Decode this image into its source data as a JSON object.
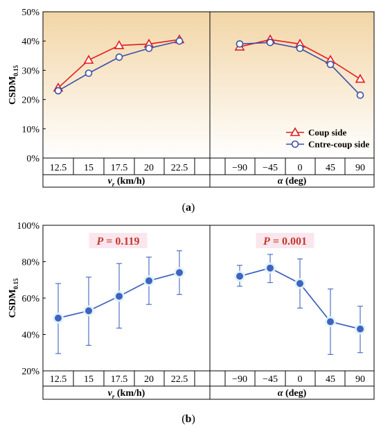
{
  "colors": {
    "coup": "#e31a1c",
    "contre": "#3a4fa8",
    "mean": "#3f63c0",
    "p_text": "#c0392b",
    "p_bg": "#fbe6ee",
    "bg_top": "#f2d5a6",
    "bg_bottom": "#ffffff"
  },
  "chart_data": [
    {
      "type": "line",
      "panel_label": "(a)",
      "ylabel": "CSDM",
      "ylabel_sub": "0.15",
      "ylim": [
        0,
        50
      ],
      "yticks": [
        "0%",
        "10%",
        "20%",
        "30%",
        "40%",
        "50%"
      ],
      "gradient_background": true,
      "legend_position": "bottom-right",
      "groups": [
        {
          "axis_label": "v",
          "axis_label_sub": "r",
          "axis_label_rest": " (km/h)",
          "categories": [
            "12.5",
            "15",
            "17.5",
            "20",
            "22.5"
          ]
        },
        {
          "axis_label": "α",
          "axis_label_sub": "",
          "axis_label_rest": " (deg)",
          "categories": [
            "−90",
            "−45",
            "0",
            "45",
            "90"
          ]
        }
      ],
      "series": [
        {
          "name": "Coup side",
          "marker": "triangle",
          "color_key": "coup",
          "values": [
            [
              24.0,
              33.5,
              38.5,
              39.0,
              40.5
            ],
            [
              38.0,
              40.5,
              39.0,
              33.5,
              27.0
            ]
          ]
        },
        {
          "name": "Cntre-coup side",
          "marker": "circle",
          "color_key": "contre",
          "values": [
            [
              23.0,
              29.0,
              34.5,
              37.5,
              40.0
            ],
            [
              39.0,
              39.5,
              37.5,
              32.0,
              21.5
            ]
          ]
        }
      ]
    },
    {
      "type": "line",
      "panel_label": "(b)",
      "ylabel": "CSDM",
      "ylabel_sub": "0.15",
      "ylim": [
        20,
        100
      ],
      "yticks": [
        "20%",
        "40%",
        "60%",
        "80%",
        "100%"
      ],
      "gradient_background": false,
      "groups": [
        {
          "axis_label": "v",
          "axis_label_sub": "r",
          "axis_label_rest": " (km/h)",
          "categories": [
            "12.5",
            "15",
            "17.5",
            "20",
            "22.5"
          ],
          "p_value": "P = 0.119",
          "values": [
            49,
            53,
            61,
            69.5,
            74
          ],
          "err_low": [
            29.5,
            34,
            43.5,
            56.5,
            62
          ],
          "err_high": [
            68,
            71.5,
            79,
            82.5,
            86
          ]
        },
        {
          "axis_label": "α",
          "axis_label_sub": "",
          "axis_label_rest": " (deg)",
          "categories": [
            "−90",
            "−45",
            "0",
            "45",
            "90"
          ],
          "p_value": "P = 0.001",
          "values": [
            72,
            76.5,
            68,
            47,
            43
          ],
          "err_low": [
            66.5,
            68.5,
            54.5,
            29,
            30
          ],
          "err_high": [
            78,
            84,
            81.5,
            65,
            55.5
          ]
        }
      ]
    }
  ]
}
